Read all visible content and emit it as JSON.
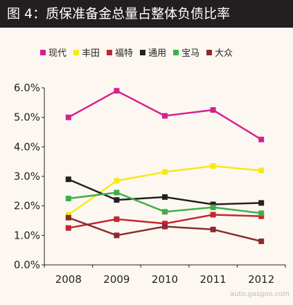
{
  "title": "图 4：质保准备金总量占整体负债比率",
  "watermark": "auto.gasgoo.com",
  "chart_data": {
    "type": "line",
    "categories": [
      "2008",
      "2009",
      "2010",
      "2011",
      "2012"
    ],
    "ylim": [
      0,
      6
    ],
    "yticks": [
      "0.0%",
      "1.0%",
      "2.0%",
      "3.0%",
      "4.0%",
      "5.0%",
      "6.0%"
    ],
    "grid": false,
    "legend": "top",
    "series": [
      {
        "name": "现代",
        "color": "#d3228f",
        "values": [
          5.0,
          5.9,
          5.05,
          5.25,
          4.25
        ]
      },
      {
        "name": "丰田",
        "color": "#f5ea14",
        "values": [
          1.7,
          2.85,
          3.15,
          3.35,
          3.2
        ]
      },
      {
        "name": "福特",
        "color": "#c1272d",
        "values": [
          1.25,
          1.55,
          1.4,
          1.7,
          1.65
        ]
      },
      {
        "name": "通用",
        "color": "#231f20",
        "values": [
          2.9,
          2.2,
          2.3,
          2.05,
          2.1
        ]
      },
      {
        "name": "宝马",
        "color": "#3fae49",
        "values": [
          2.25,
          2.45,
          1.8,
          1.95,
          1.75
        ]
      },
      {
        "name": "大众",
        "color": "#8b2b2b",
        "values": [
          1.6,
          1.0,
          1.3,
          1.2,
          0.8
        ]
      }
    ]
  }
}
